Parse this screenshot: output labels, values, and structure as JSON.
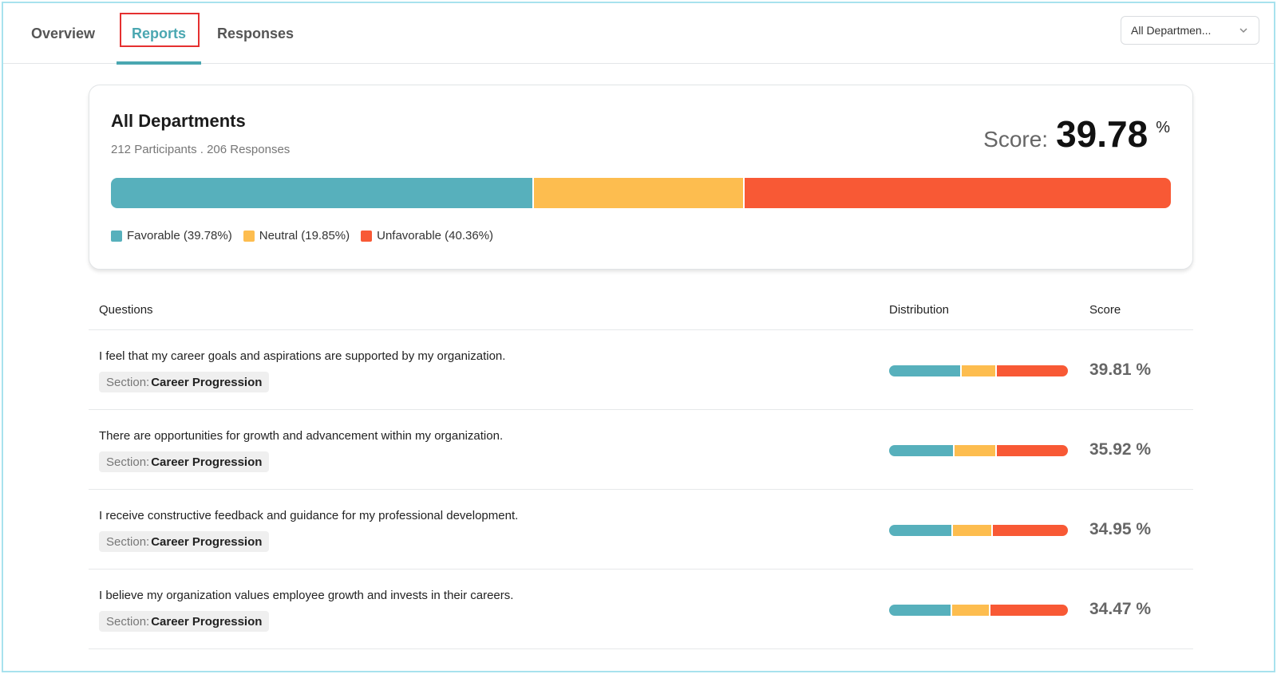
{
  "tabs": [
    {
      "label": "Overview",
      "active": false
    },
    {
      "label": "Reports",
      "active": true
    },
    {
      "label": "Responses",
      "active": false
    }
  ],
  "department_select": {
    "value": "All Departmen..."
  },
  "colors": {
    "favorable": "#57b0bc",
    "neutral": "#fdbd4f",
    "unfavorable": "#f85935",
    "accent": "#4aa7b1"
  },
  "summary": {
    "title": "All Departments",
    "subtitle": "212 Participants . 206 Responses",
    "score_label": "Score:",
    "score_value": "39.78",
    "score_unit": "%",
    "distribution": {
      "favorable": 39.78,
      "neutral": 19.85,
      "unfavorable": 40.36
    },
    "legend": {
      "favorable": "Favorable (39.78%)",
      "neutral": "Neutral (19.85%)",
      "unfavorable": "Unfavorable (40.36%)"
    }
  },
  "table": {
    "headers": {
      "questions": "Questions",
      "distribution": "Distribution",
      "score": "Score"
    },
    "rows": [
      {
        "question": "I feel that my career goals and aspirations are supported by my organization.",
        "section_label": "Section:",
        "section": "Career Progression",
        "score": "39.81 %",
        "distribution": {
          "favorable": 39.81,
          "neutral": 19.5,
          "unfavorable": 40.69
        }
      },
      {
        "question": "There are opportunities for growth and advancement within my organization.",
        "section_label": "Section:",
        "section": "Career Progression",
        "score": "35.92 %",
        "distribution": {
          "favorable": 35.92,
          "neutral": 23.3,
          "unfavorable": 40.78
        }
      },
      {
        "question": "I receive constructive feedback and guidance for my professional development.",
        "section_label": "Section:",
        "section": "Career Progression",
        "score": "34.95 %",
        "distribution": {
          "favorable": 34.95,
          "neutral": 22.3,
          "unfavorable": 42.75
        }
      },
      {
        "question": "I believe my organization values employee growth and invests in their careers.",
        "section_label": "Section:",
        "section": "Career Progression",
        "score": "34.47 %",
        "distribution": {
          "favorable": 34.47,
          "neutral": 21.4,
          "unfavorable": 44.13
        }
      }
    ]
  }
}
